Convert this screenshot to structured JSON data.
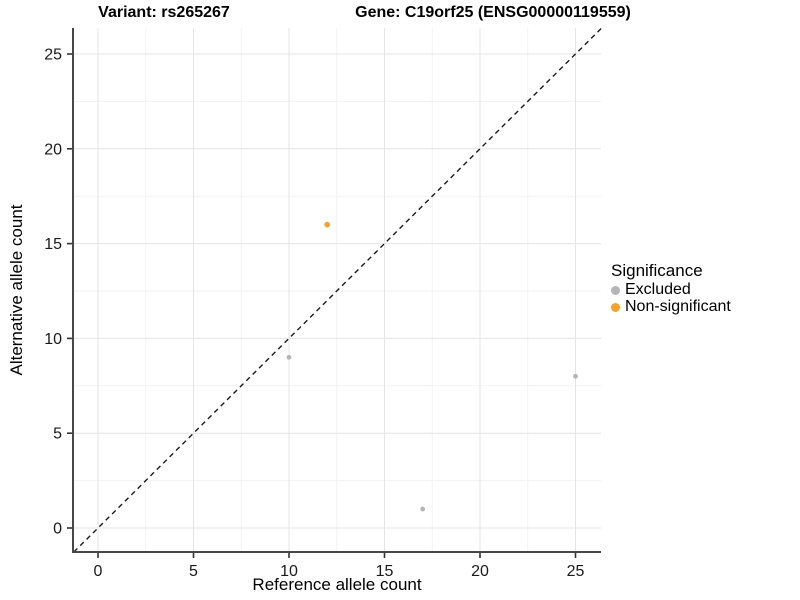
{
  "titles": {
    "variant": "Variant: rs265267",
    "gene": "Gene: C19orf25 (ENSG00000119559)"
  },
  "chart_data": {
    "type": "scatter",
    "xlabel": "Reference allele count",
    "ylabel": "Alternative allele count",
    "xlim": [
      -1.3,
      26.4
    ],
    "ylim": [
      -1.3,
      26.4
    ],
    "x_ticks": [
      0,
      5,
      10,
      15,
      20,
      25
    ],
    "y_ticks": [
      0,
      5,
      10,
      15,
      20,
      25
    ],
    "x_minor_ticks": [
      2.5,
      7.5,
      12.5,
      17.5,
      22.5
    ],
    "y_minor_ticks": [
      2.5,
      7.5,
      12.5,
      17.5,
      22.5
    ],
    "grid": true,
    "series": [
      {
        "name": "Excluded",
        "color": "#B5B5B5",
        "point_radius": 2.4,
        "points": [
          [
            10,
            9
          ],
          [
            17,
            1
          ],
          [
            25,
            8
          ]
        ]
      },
      {
        "name": "Non-significant",
        "color": "#FAA21E",
        "point_radius": 2.8,
        "points": [
          [
            12,
            16
          ]
        ]
      }
    ],
    "identity_line": {
      "equation": "y = x",
      "style": "dashed",
      "color": "#1A1A1A"
    },
    "legend": {
      "title": "Significance",
      "position": "right"
    }
  },
  "colors": {
    "axis_line": "#474747",
    "tick_mark": "#333333",
    "tick_label": "#1A1A1A",
    "grid_major": "#E4E4E4",
    "grid_minor": "#F2F2F2",
    "background": "#FFFFFF"
  }
}
